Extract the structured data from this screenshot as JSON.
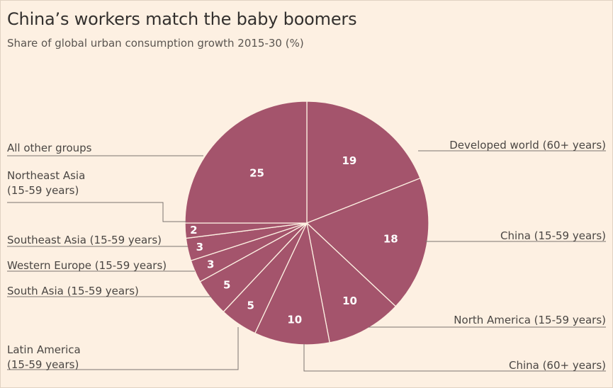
{
  "header": {
    "title": "China’s workers match the baby boomers",
    "subtitle": "Share of global urban consumption growth 2015-30 (%)"
  },
  "colors": {
    "slice": "#a4546c",
    "divider": "#fdf0e2",
    "leader": "#7a7470"
  },
  "chart_data": {
    "type": "pie",
    "title": "China’s workers match the baby boomers",
    "subtitle": "Share of global urban consumption growth 2015-30 (%)",
    "slices": [
      {
        "label": [
          "Developed world (60+ years)"
        ],
        "value": 19
      },
      {
        "label": [
          "China (15-59 years)"
        ],
        "value": 18
      },
      {
        "label": [
          "North America (15-59 years)"
        ],
        "value": 10
      },
      {
        "label": [
          "China (60+ years)"
        ],
        "value": 10
      },
      {
        "label": [
          "Latin America",
          "(15-59 years)"
        ],
        "value": 5
      },
      {
        "label": [
          "South Asia (15-59 years)"
        ],
        "value": 5
      },
      {
        "label": [
          "Western Europe (15-59 years)"
        ],
        "value": 3
      },
      {
        "label": [
          "Southeast Asia (15-59 years)"
        ],
        "value": 3
      },
      {
        "label": [
          "Northeast Asia",
          "(15-59 years)"
        ],
        "value": 2
      },
      {
        "label": [
          "All other groups"
        ],
        "value": 25
      }
    ],
    "start_angle": "12 o'clock",
    "direction": "clockwise"
  }
}
